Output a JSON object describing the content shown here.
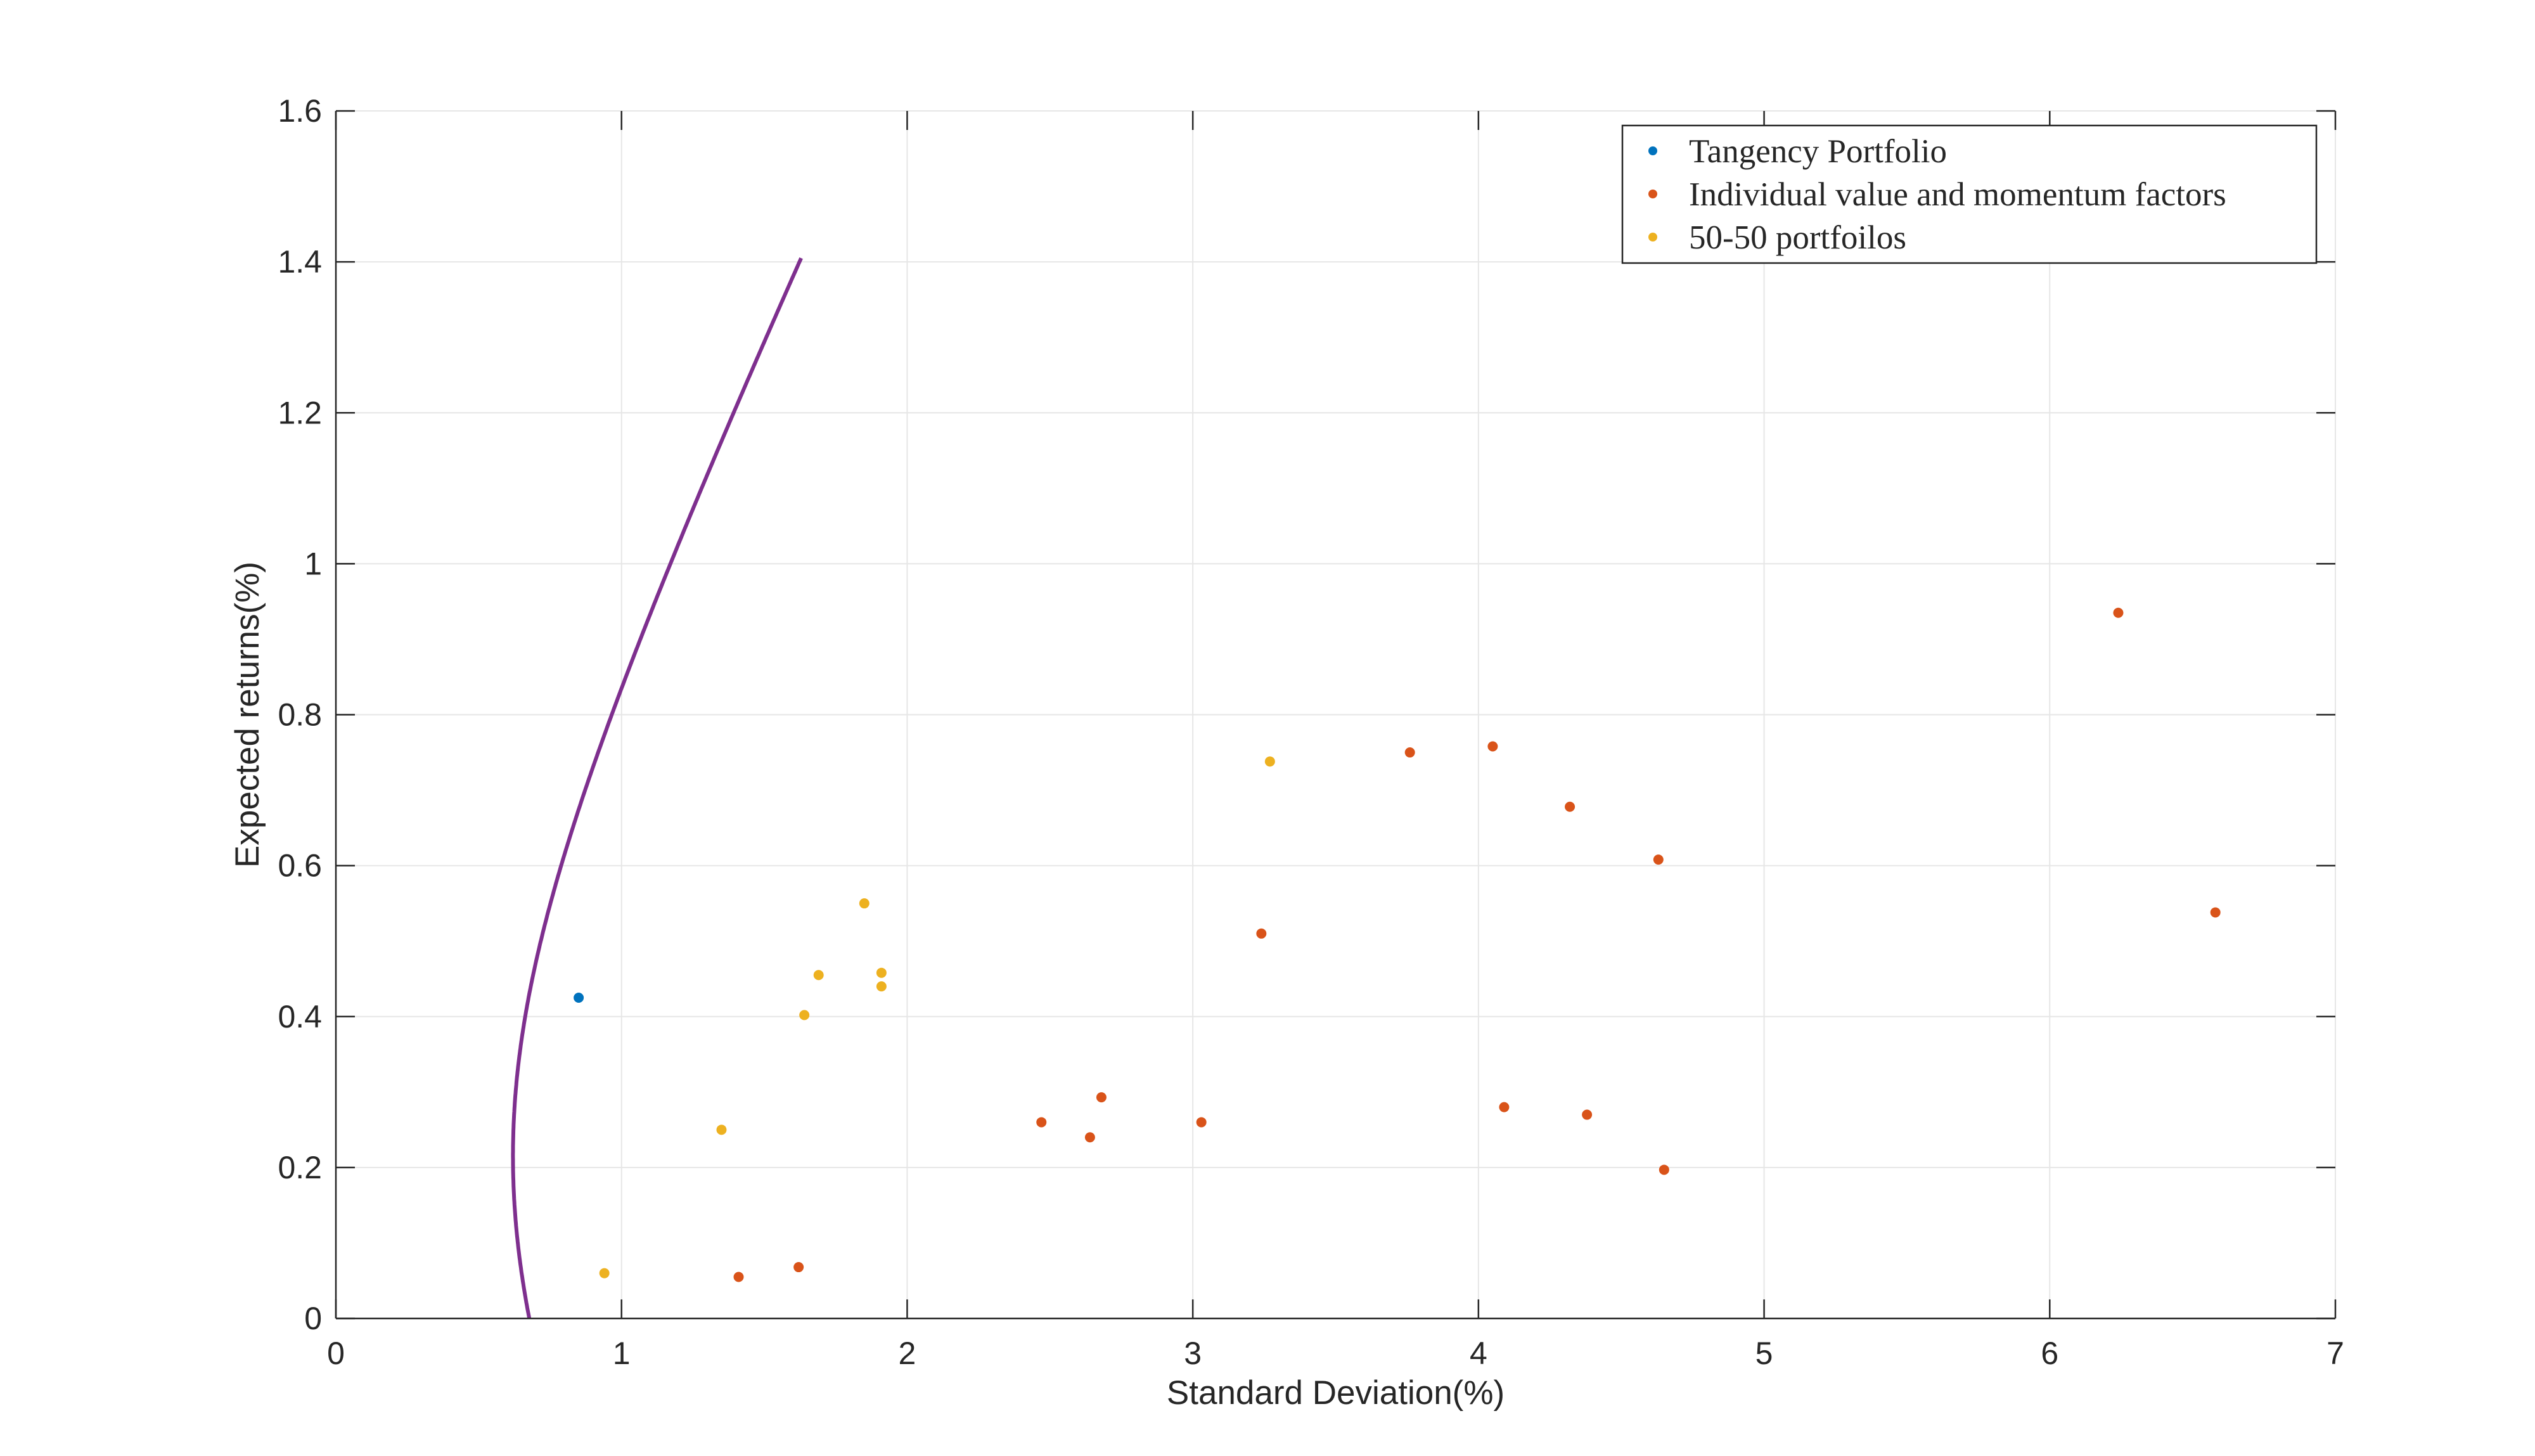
{
  "chart_data": {
    "type": "scatter",
    "title": "",
    "xlabel": "Standard Deviation(%)",
    "ylabel": "Expected returns(%)",
    "xlim": [
      0,
      7
    ],
    "ylim": [
      0,
      1.6
    ],
    "xticks": [
      "0",
      "1",
      "2",
      "3",
      "4",
      "5",
      "6",
      "7"
    ],
    "yticks": [
      "0",
      "0.2",
      "0.4",
      "0.6",
      "0.8",
      "1",
      "1.2",
      "1.4",
      "1.6"
    ],
    "grid": true,
    "legend_position": "top-right",
    "colors": {
      "frontier": "#7E2F8E",
      "tangency": "#0072BD",
      "individual": "#D95319",
      "fifty_fifty": "#EDB120",
      "axis": "#262626",
      "grid": "#E6E6E6"
    },
    "frontier": {
      "name": "",
      "color": "#7E2F8E",
      "min_sd": 0.62,
      "min_return": 0.215,
      "curvature": 160.2,
      "return_range": [
        0,
        1.405
      ]
    },
    "series": [
      {
        "name": "Tangency Portfolio",
        "color": "#0072BD",
        "points": [
          [
            0.85,
            0.425
          ]
        ]
      },
      {
        "name": "Individual value and momentum factors",
        "color": "#D95319",
        "points": [
          [
            1.41,
            0.055
          ],
          [
            1.62,
            0.068
          ],
          [
            2.47,
            0.26
          ],
          [
            2.64,
            0.24
          ],
          [
            2.68,
            0.293
          ],
          [
            3.03,
            0.26
          ],
          [
            3.24,
            0.51
          ],
          [
            3.76,
            0.75
          ],
          [
            4.05,
            0.758
          ],
          [
            4.09,
            0.28
          ],
          [
            4.32,
            0.678
          ],
          [
            4.38,
            0.27
          ],
          [
            4.63,
            0.608
          ],
          [
            4.65,
            0.197
          ],
          [
            6.24,
            0.935
          ],
          [
            6.58,
            0.538
          ]
        ]
      },
      {
        "name": "50-50 portfoilos",
        "color": "#EDB120",
        "points": [
          [
            0.94,
            0.06
          ],
          [
            1.35,
            0.25
          ],
          [
            1.64,
            0.402
          ],
          [
            1.69,
            0.455
          ],
          [
            1.85,
            0.55
          ],
          [
            1.91,
            0.458
          ],
          [
            1.91,
            0.44
          ],
          [
            3.27,
            0.738
          ]
        ]
      }
    ]
  }
}
